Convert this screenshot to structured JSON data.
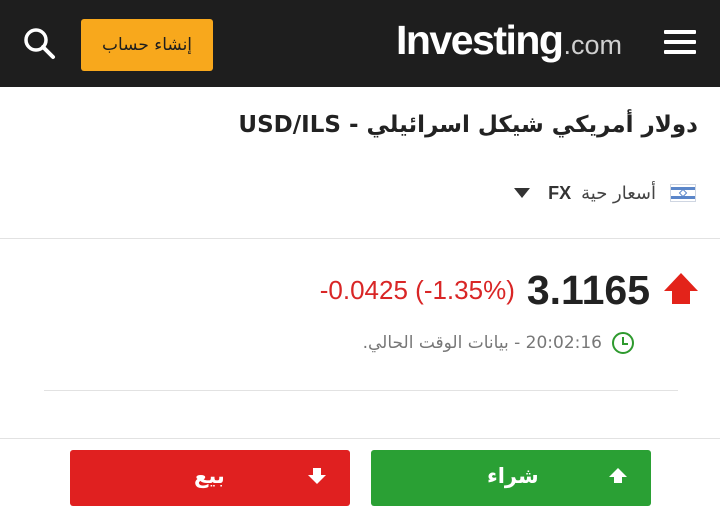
{
  "header": {
    "logo_main": "Investing",
    "logo_domain": ".com",
    "signup_label": "إنشاء حساب",
    "search_icon": "search-icon",
    "menu_icon": "hamburger-menu-icon",
    "brand_color": "#f8a81c",
    "bar_color": "#1e1e1e"
  },
  "instrument": {
    "title": "دولار أمريكي شيكل اسرائيلي - USD/ILS",
    "data_type": "أسعار حية",
    "market": "FX",
    "flag_icon": "israel-flag-icon",
    "dropdown_icon": "caret-down-icon"
  },
  "quote": {
    "price": "3.1165",
    "change": "-0.0425",
    "change_percent": "(-1.35%)",
    "direction_icon": "up-arrow-icon",
    "change_color": "#d92626",
    "time": "20:02:16",
    "time_label": "- بيانات الوقت الحالي.",
    "clock_icon": "clock-icon"
  },
  "actions": {
    "buy_label": "شراء",
    "sell_label": "بيع",
    "buy_color": "#2aa034",
    "sell_color": "#e02020"
  }
}
